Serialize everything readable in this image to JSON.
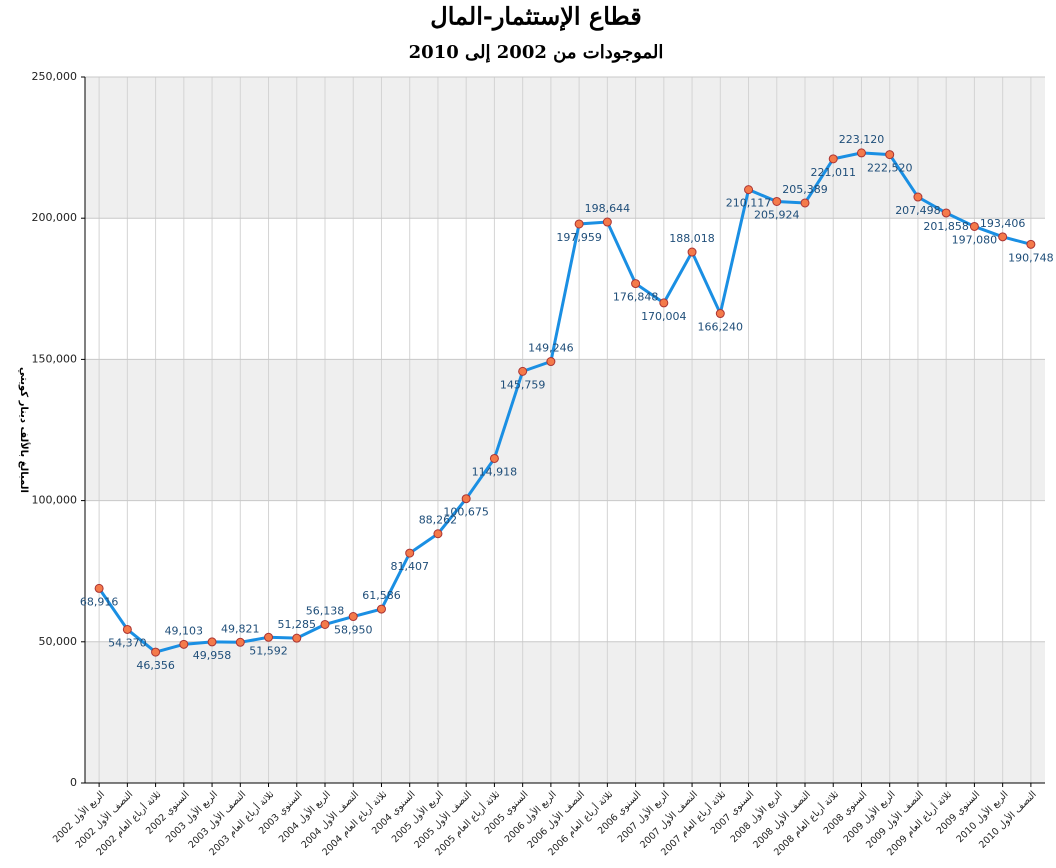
{
  "chart_data": {
    "type": "line",
    "title": "قطاع الإستثمار-المال",
    "subtitle": "الموجودات من 2002 إلى 2010",
    "y_label": "المبالغ بالألف دينار كويتي",
    "categories": [
      "الربع الأول 2002",
      "النصف الأول 2002",
      "ثلاثة أرباع العام 2002",
      "السنوي 2002",
      "الربع الأول 2003",
      "النصف الأول 2003",
      "ثلاثة أرباع العام 2003",
      "السنوي 2003",
      "الربع الأول 2004",
      "النصف الأول 2004",
      "ثلاثة أرباع العام 2004",
      "السنوي 2004",
      "الربع الأول 2005",
      "النصف الأول 2005",
      "ثلاثة أرباع العام 2005",
      "السنوي 2005",
      "الربع الأول 2006",
      "النصف الأول 2006",
      "ثلاثة أرباع العام 2006",
      "السنوي 2006",
      "الربع الأول 2007",
      "النصف الأول 2007",
      "ثلاثة أرباع العام 2007",
      "السنوي 2007",
      "الربع الأول 2008",
      "النصف الأول 2008",
      "ثلاثة أرباع العام 2008",
      "السنوي 2008",
      "الربع الأول 2009",
      "النصف الأول 2009",
      "ثلاثة أرباع العام 2009",
      "السنوي 2009",
      "الربع الأول 2010",
      "النصف الأول 2010"
    ],
    "values": [
      68916,
      54370,
      46356,
      49103,
      49958,
      49821,
      51592,
      51285,
      56138,
      58950,
      61586,
      81407,
      88262,
      100675,
      114918,
      145759,
      149246,
      197959,
      198644,
      176848,
      170004,
      188018,
      166240,
      210117,
      205924,
      205389,
      221011,
      223120,
      222520,
      207498,
      201858,
      197080,
      193406,
      190748
    ],
    "value_labels": [
      "68,916",
      "54,370",
      "46,356",
      "49,103",
      "49,958",
      "49,821",
      "51,592",
      "51,285",
      "56,138",
      "58,950",
      "61,586",
      "81,407",
      "88,262",
      "100,675",
      "114,918",
      "145,759",
      "149,246",
      "197,959",
      "198,644",
      "176,848",
      "170,004",
      "188,018",
      "166,240",
      "210,117",
      "205,924",
      "205,389",
      "221,011",
      "223,120",
      "222,520",
      "207,498",
      "201,858",
      "197,080",
      "193,406",
      "190,748"
    ],
    "color": "#1a8fe3",
    "marker_color": "#f47a4a",
    "ylim": [
      0,
      250000
    ],
    "yticks": [
      0,
      {
        "value": 50000,
        "label": "50,000"
      },
      {
        "value": 100000,
        "label": "100,000"
      },
      {
        "value": 150000,
        "label": "150,000"
      },
      {
        "value": 200000,
        "label": "200,000"
      },
      {
        "value": 250000,
        "label": "250,000"
      }
    ],
    "grid": true
  }
}
